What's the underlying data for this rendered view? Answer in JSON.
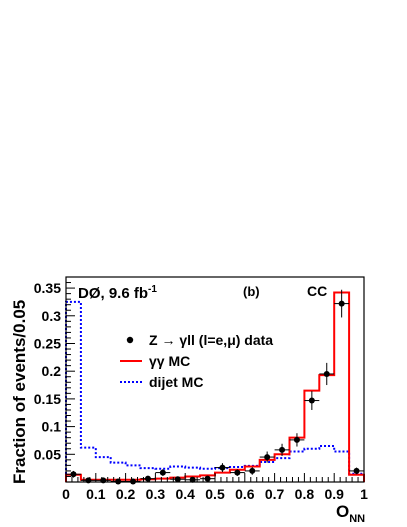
{
  "chart_data": {
    "type": "histogram",
    "experiment": "DØ, 9.6 fb",
    "experiment_sup": "-1",
    "panel_label": "(b)",
    "region_label": "CC",
    "xlabel": "O",
    "xlabel_sub": "NN",
    "ylabel": "Fraction of events/0.05",
    "xlim": [
      0,
      1
    ],
    "ylim": [
      0,
      0.37
    ],
    "x_ticks": [
      0,
      0.1,
      0.2,
      0.3,
      0.4,
      0.5,
      0.6,
      0.7,
      0.8,
      0.9,
      1
    ],
    "x_tick_labels": [
      "0",
      "0.1",
      "0.2",
      "0.3",
      "0.4",
      "0.5",
      "0.6",
      "0.7",
      "0.8",
      "0.9",
      "1"
    ],
    "y_ticks": [
      0.05,
      0.1,
      0.15,
      0.2,
      0.25,
      0.3,
      0.35
    ],
    "y_tick_labels": [
      "0.05",
      "0.1",
      "0.15",
      "0.2",
      "0.25",
      "0.3",
      "0.35"
    ],
    "bin_width": 0.05,
    "bin_edges": [
      0,
      0.05,
      0.1,
      0.15,
      0.2,
      0.25,
      0.3,
      0.35,
      0.4,
      0.45,
      0.5,
      0.55,
      0.6,
      0.65,
      0.7,
      0.75,
      0.8,
      0.85,
      0.9,
      0.95,
      1.0
    ],
    "series": [
      {
        "name": "Z → γll (l=e,μ) data",
        "style": "points",
        "color": "#000000",
        "x": [
          0.025,
          0.075,
          0.125,
          0.175,
          0.225,
          0.275,
          0.325,
          0.375,
          0.425,
          0.475,
          0.525,
          0.575,
          0.625,
          0.675,
          0.725,
          0.775,
          0.825,
          0.875,
          0.925,
          0.975
        ],
        "values": [
          0.014,
          0.003,
          0.003,
          0.001,
          0.001,
          0.006,
          0.017,
          0.005,
          0.004,
          0.006,
          0.026,
          0.017,
          0.02,
          0.045,
          0.058,
          0.076,
          0.147,
          0.195,
          0.322,
          0.02
        ],
        "errors": [
          0.006,
          0.003,
          0.003,
          0.002,
          0.002,
          0.004,
          0.006,
          0.004,
          0.004,
          0.004,
          0.008,
          0.006,
          0.007,
          0.01,
          0.011,
          0.012,
          0.017,
          0.02,
          0.025,
          0.006
        ]
      },
      {
        "name": "γγ MC",
        "style": "step",
        "color": "#ff0000",
        "values": [
          0.013,
          0.004,
          0.004,
          0.004,
          0.004,
          0.005,
          0.006,
          0.008,
          0.01,
          0.012,
          0.017,
          0.022,
          0.028,
          0.04,
          0.05,
          0.08,
          0.165,
          0.193,
          0.342,
          0.013
        ]
      },
      {
        "name": "dijet MC",
        "style": "step-dashed",
        "color": "#0000ff",
        "values": [
          0.325,
          0.062,
          0.045,
          0.035,
          0.03,
          0.025,
          0.024,
          0.028,
          0.026,
          0.024,
          0.025,
          0.027,
          0.029,
          0.036,
          0.043,
          0.055,
          0.06,
          0.065,
          0.055,
          0.015
        ]
      }
    ],
    "legend_position": "middle-left"
  }
}
